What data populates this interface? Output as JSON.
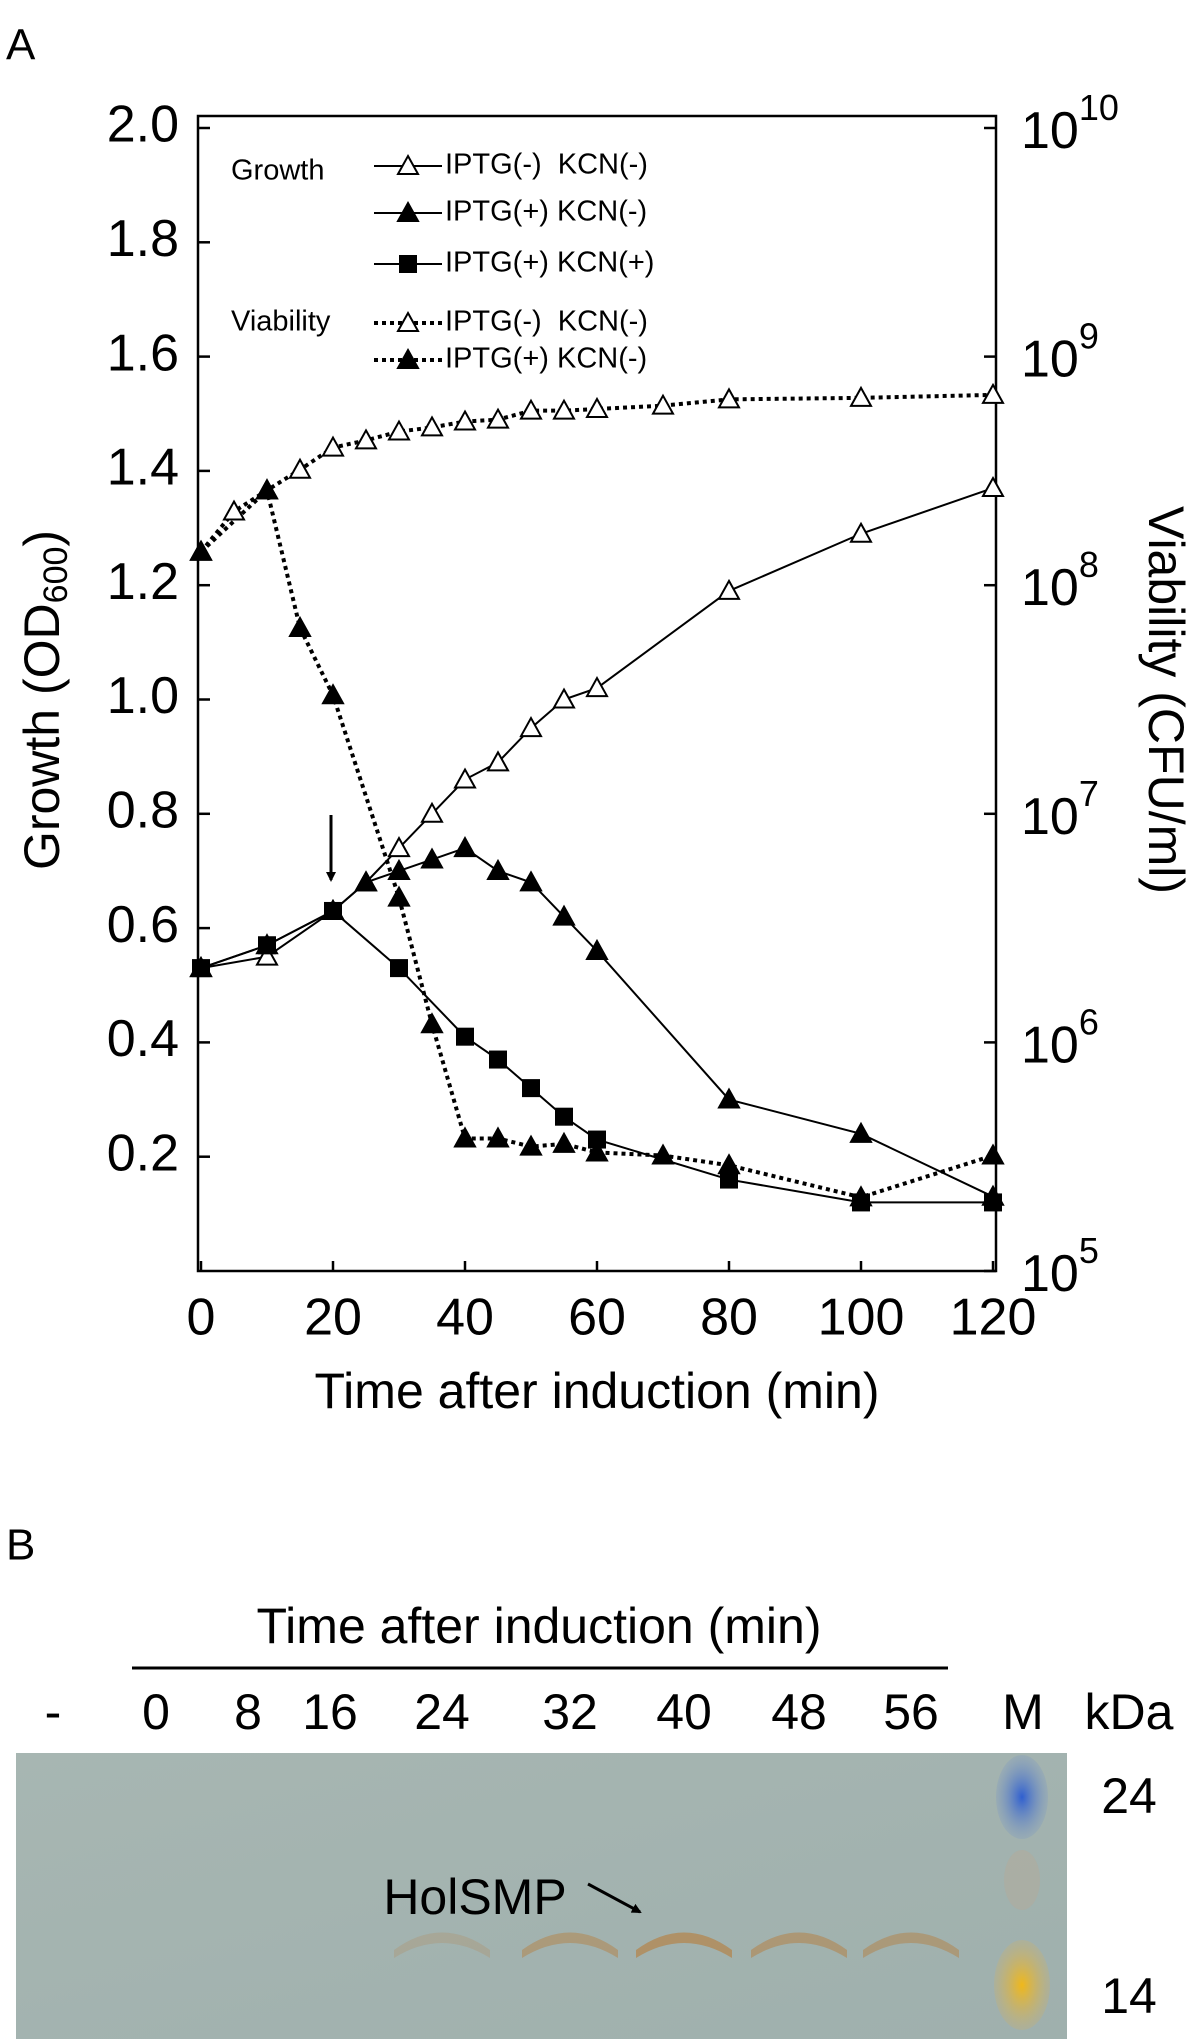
{
  "chart_data": {
    "type": "line",
    "panel_label": "A",
    "xlabel": "Time after induction (min)",
    "ylabel": {
      "text": "Growth (OD",
      "sub": "600",
      "end": ")"
    },
    "y2label": "Viability (CFU/ml)",
    "xlim": [
      0,
      120
    ],
    "xticks": [
      0,
      20,
      40,
      60,
      80,
      100,
      120
    ],
    "ylim": [
      0,
      2.0
    ],
    "yticks": [
      0.2,
      0.4,
      0.6,
      0.8,
      {
        "value": 1,
        "label": "1.0"
      },
      1.2,
      1.4,
      1.6,
      1.8,
      {
        "value": 2,
        "label": "2.0"
      }
    ],
    "y2lim": [
      100000,
      10000000000
    ],
    "y2scale": "log",
    "y2ticks": [
      {
        "value": 100000,
        "label": "10",
        "sup": "5"
      },
      {
        "value": 1000000,
        "label": "10",
        "sup": "6"
      },
      {
        "value": 10000000,
        "label": "10",
        "sup": "7"
      },
      {
        "value": 100000000,
        "label": "10",
        "sup": "8"
      },
      {
        "value": 1000000000,
        "label": "10",
        "sup": "9"
      },
      {
        "value": 10000000000,
        "label": "10",
        "sup": "10"
      }
    ],
    "legend_titles": [
      "Growth",
      "Viability"
    ],
    "series": [
      {
        "name": "IPTG(-)  KCN(-)",
        "color": "#000000",
        "marker": "open-triangle",
        "dash": "solid",
        "axis": "y",
        "x": [
          0,
          10,
          20,
          25,
          30,
          35,
          40,
          45,
          50,
          55,
          60,
          80,
          100,
          120
        ],
        "values": [
          0.53,
          0.55,
          0.63,
          0.68,
          0.74,
          0.8,
          0.86,
          0.89,
          0.95,
          1.0,
          1.02,
          1.19,
          1.29,
          1.37
        ]
      },
      {
        "name": "IPTG(+) KCN(-)",
        "color": "#000000",
        "marker": "filled-triangle",
        "dash": "solid",
        "axis": "y",
        "x": [
          0,
          10,
          20,
          25,
          30,
          35,
          40,
          45,
          50,
          55,
          60,
          80,
          100,
          120
        ],
        "values": [
          0.53,
          0.57,
          0.63,
          0.68,
          0.7,
          0.72,
          0.74,
          0.7,
          0.68,
          0.62,
          0.56,
          0.3,
          0.24,
          0.13
        ]
      },
      {
        "name": "IPTG(+) KCN(+)",
        "color": "#000000",
        "marker": "filled-square",
        "dash": "solid",
        "axis": "y",
        "x": [
          0,
          10,
          20,
          30,
          40,
          45,
          50,
          55,
          60,
          80,
          100,
          120
        ],
        "values": [
          0.53,
          0.57,
          0.63,
          0.53,
          0.41,
          0.37,
          0.32,
          0.27,
          0.23,
          0.16,
          0.12,
          0.12
        ]
      },
      {
        "name": "IPTG(-)  KCN(-)",
        "color": "#000000",
        "marker": "open-triangle",
        "dash": "dotted",
        "axis": "y2",
        "x": [
          0,
          5,
          10,
          15,
          20,
          25,
          30,
          35,
          40,
          45,
          50,
          55,
          60,
          70,
          80,
          100,
          120
        ],
        "values": [
          140000000,
          210000000,
          260000000,
          320000000,
          400000000,
          430000000,
          470000000,
          490000000,
          520000000,
          530000000,
          580000000,
          580000000,
          590000000,
          610000000,
          650000000,
          660000000,
          680000000
        ]
      },
      {
        "name": "IPTG(+) KCN(-)",
        "color": "#000000",
        "marker": "filled-triangle",
        "dash": "dotted",
        "axis": "y2",
        "x": [
          0,
          10,
          15,
          20,
          30,
          35,
          40,
          45,
          50,
          55,
          60,
          70,
          80,
          100,
          120
        ],
        "values": [
          140000000,
          260000000,
          65000000,
          33000000,
          4300000,
          1200000,
          380000,
          380000,
          350000,
          360000,
          330000,
          320000,
          290000,
          210000,
          320000
        ]
      }
    ]
  },
  "gel": {
    "panel_label": "B",
    "title": "Time after induction (min)",
    "lanes": [
      "-",
      "0",
      "8",
      "16",
      "24",
      "32",
      "40",
      "48",
      "56",
      "M"
    ],
    "unit": "kDa",
    "markers": [
      "24",
      "14"
    ],
    "annotation": "HolSMP"
  }
}
